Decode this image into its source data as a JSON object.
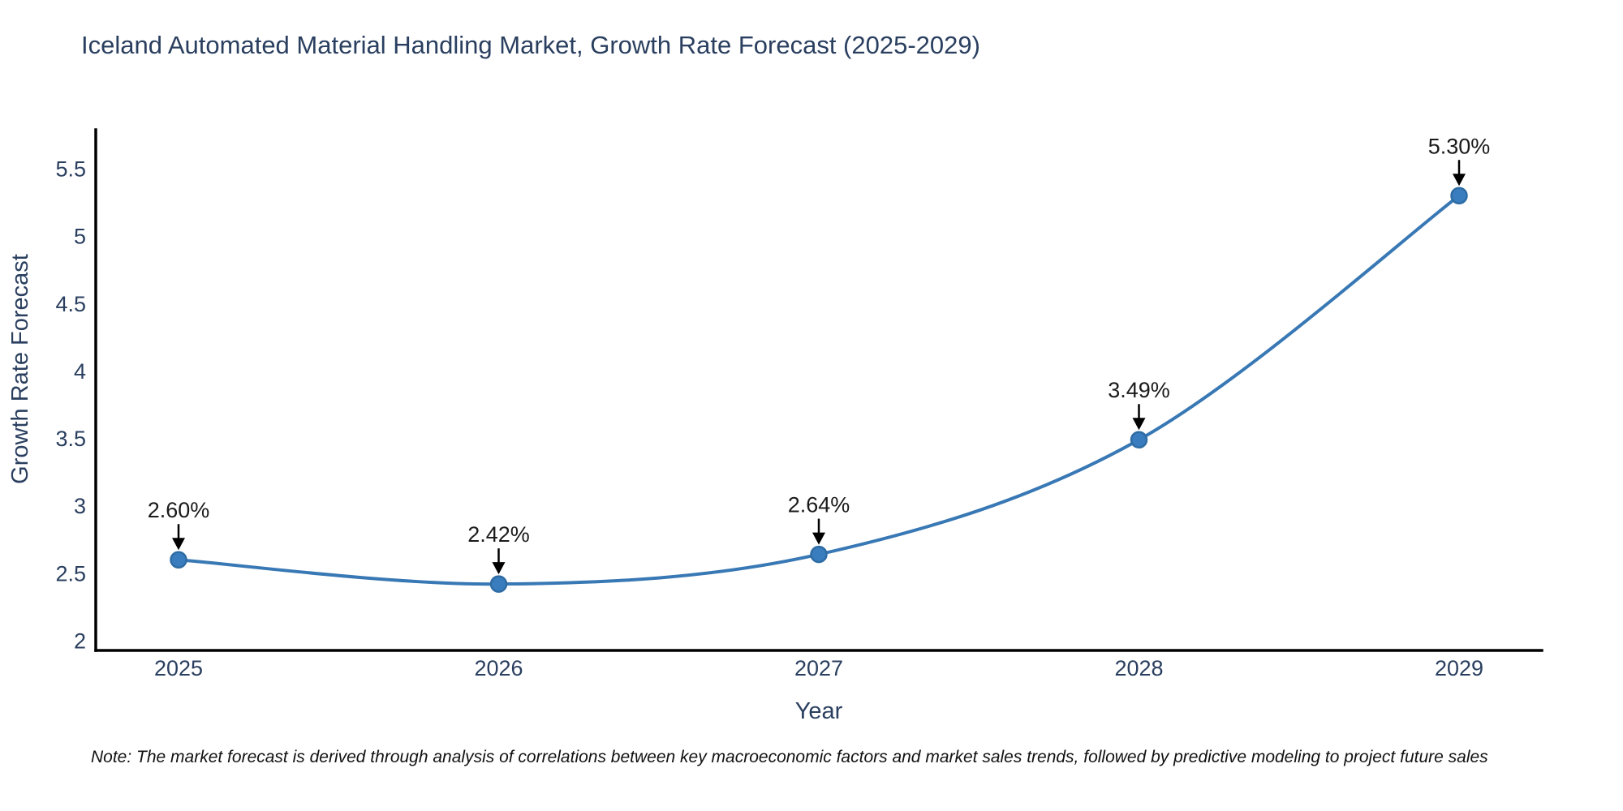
{
  "title": "Iceland Automated Material Handling Market, Growth Rate Forecast (2025-2029)",
  "note": "Note: The market forecast is derived through analysis of correlations between key macroeconomic factors and market sales trends, followed by predictive modeling to project future sales",
  "chart_data": {
    "type": "line",
    "title": "Iceland Automated Material Handling Market, Growth Rate Forecast (2025-2029)",
    "xlabel": "Year",
    "ylabel": "Growth Rate Forecast",
    "categories": [
      "2025",
      "2026",
      "2027",
      "2028",
      "2029"
    ],
    "series": [
      {
        "name": "Growth Rate Forecast",
        "values": [
          2.6,
          2.42,
          2.64,
          3.49,
          5.3
        ],
        "point_labels": [
          "2.60%",
          "2.42%",
          "2.64%",
          "3.49%",
          "5.30%"
        ]
      }
    ],
    "y_ticks": [
      2,
      2.5,
      3,
      3.5,
      4,
      4.5,
      5,
      5.5
    ],
    "ylim": [
      2,
      5.5
    ],
    "grid": false,
    "legend_position": "none",
    "line_style": "spline",
    "annotations_have_arrows": true,
    "colors": {
      "line": "#3878b4",
      "marker_fill": "#3a7dbf",
      "marker_edge": "#2e6ca4",
      "annotation_text": "#1a1a1a",
      "annotation_arrow": "#000000",
      "axis_text": "#2a3f5f",
      "axis_line": "#000000",
      "background": "#ffffff"
    }
  }
}
